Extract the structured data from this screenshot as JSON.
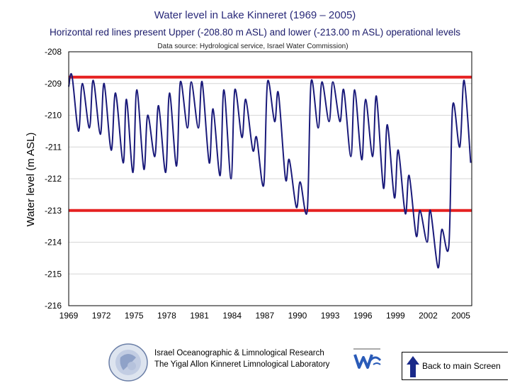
{
  "chart_data": {
    "type": "line",
    "title": "Water level in Lake Kinneret (1969 – 2005)",
    "subtitle": "Horizontal red lines present Upper (-208.80 m ASL) and lower (-213.00 m ASL) operational levels",
    "source_note": "Data source: Hydrological service, Israel Water Commission)",
    "ylabel": "Water level (m ASL)",
    "xlabel": "",
    "xlim": [
      1969,
      2006
    ],
    "ylim": [
      -216,
      -208
    ],
    "x_ticks": [
      "1969",
      "1972",
      "1975",
      "1978",
      "1981",
      "1984",
      "1987",
      "1990",
      "1993",
      "1996",
      "1999",
      "2002",
      "2005"
    ],
    "y_ticks": [
      "-208",
      "-209",
      "-210",
      "-211",
      "-212",
      "-213",
      "-214",
      "-215",
      "-216"
    ],
    "grid": "horizontal",
    "reference_lines": [
      {
        "y": -208.8,
        "color": "#e52121"
      },
      {
        "y": -213.0,
        "color": "#e52121"
      }
    ],
    "series_color": "#1a1a7a",
    "series": [
      {
        "x": [
          1969.0,
          1969.3,
          1969.9,
          1970.25,
          1970.9,
          1971.25,
          1971.9,
          1972.25,
          1972.9,
          1973.3,
          1974.0,
          1974.3,
          1974.9,
          1975.25,
          1975.9,
          1976.25,
          1976.9,
          1977.25,
          1977.9,
          1978.25,
          1978.9,
          1979.25,
          1979.9,
          1980.25,
          1980.9,
          1981.25,
          1981.9,
          1982.25,
          1982.9,
          1983.25,
          1983.9,
          1984.25,
          1984.9,
          1985.25,
          1985.9,
          1986.25,
          1986.9,
          1987.25,
          1987.9,
          1988.25,
          1988.9,
          1989.25,
          1989.9,
          1990.25,
          1990.9,
          1991.25,
          1991.9,
          1992.25,
          1992.9,
          1993.25,
          1993.9,
          1994.25,
          1994.9,
          1995.25,
          1995.9,
          1996.25,
          1996.9,
          1997.25,
          1997.9,
          1998.25,
          1998.9,
          1999.25,
          1999.9,
          2000.25,
          2000.9,
          2001.25,
          2001.9,
          2002.2,
          2002.9,
          2003.25,
          2003.9,
          2004.25,
          2004.9,
          2005.3,
          2005.9
        ],
        "y": [
          -209.1,
          -208.75,
          -210.5,
          -209.0,
          -210.4,
          -208.9,
          -210.6,
          -209.0,
          -211.1,
          -209.3,
          -211.5,
          -209.5,
          -211.8,
          -209.2,
          -211.7,
          -210.0,
          -211.3,
          -209.7,
          -211.8,
          -209.3,
          -211.6,
          -208.95,
          -210.4,
          -208.95,
          -210.4,
          -208.95,
          -211.5,
          -209.8,
          -211.9,
          -209.2,
          -212.0,
          -209.2,
          -210.7,
          -209.5,
          -211.1,
          -210.7,
          -212.2,
          -208.95,
          -210.2,
          -209.3,
          -212.0,
          -211.4,
          -212.9,
          -212.1,
          -213.0,
          -208.95,
          -210.4,
          -208.95,
          -210.2,
          -208.95,
          -210.2,
          -209.2,
          -211.3,
          -209.2,
          -211.4,
          -209.5,
          -211.3,
          -209.4,
          -212.3,
          -210.3,
          -212.6,
          -211.1,
          -213.1,
          -211.9,
          -213.8,
          -213.0,
          -214.0,
          -213.0,
          -214.8,
          -213.6,
          -214.1,
          -209.7,
          -211.0,
          -208.9,
          -211.5
        ]
      }
    ]
  },
  "footer": {
    "org_line1": "Israel Oceanographic & Limnological Research",
    "org_line2": "The Yigal Allon Kinneret Limnological Laboratory",
    "back_button_label": "Back to main Screen"
  }
}
